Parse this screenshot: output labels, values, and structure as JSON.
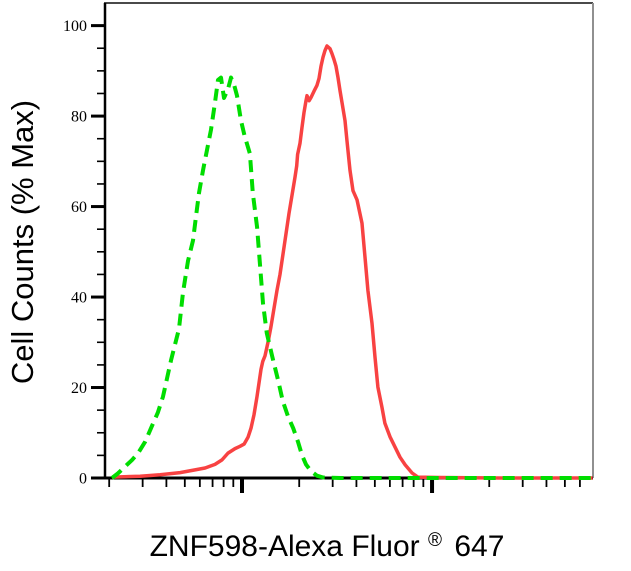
{
  "figure": {
    "background": "#ffffff"
  },
  "chart_data": {
    "type": "line",
    "subtype": "flow-cytometry-histogram-overlay",
    "title": "",
    "ylabel": "Cell Counts (% Max)",
    "xlabel_main": "ZNF598-Alexa Fluor",
    "xlabel_sup": "®",
    "xlabel_tail": "647",
    "x_scale": "log",
    "x_log_range": [
      1.279,
      3.847
    ],
    "x_major_ticks": [
      100,
      1000
    ],
    "x_minor_ticks": [
      20,
      30,
      40,
      50,
      60,
      70,
      80,
      90,
      200,
      300,
      400,
      500,
      600,
      700,
      800,
      900,
      2000,
      3000,
      4000,
      5000,
      6000
    ],
    "y_range": [
      0,
      105
    ],
    "y_major_ticks": [
      0,
      20,
      40,
      60,
      80,
      100
    ],
    "y_minor_step": 5,
    "grid": false,
    "legend": "none",
    "axis_color": "#000000",
    "box_top_color": "#4a4a4a",
    "box_right_color": "#909090",
    "series": [
      {
        "id": "red-solid",
        "color": "#f84242",
        "line_style": "solid",
        "line_width": 3.5,
        "points": [
          [
            20.7,
            0.2
          ],
          [
            29.1,
            0.4
          ],
          [
            37,
            0.7
          ],
          [
            47.2,
            1.2
          ],
          [
            56.6,
            1.8
          ],
          [
            63.9,
            2.2
          ],
          [
            72.1,
            3
          ],
          [
            78.5,
            4
          ],
          [
            84.4,
            5.5
          ],
          [
            91.9,
            6.5
          ],
          [
            97.6,
            7
          ],
          [
            102.5,
            7.5
          ],
          [
            107.5,
            9
          ],
          [
            111.5,
            11
          ],
          [
            115.7,
            14
          ],
          [
            119.9,
            18
          ],
          [
            122.9,
            21
          ],
          [
            125.9,
            24
          ],
          [
            128.7,
            25.8
          ],
          [
            132.1,
            27
          ],
          [
            137,
            30
          ],
          [
            142.1,
            33.5
          ],
          [
            147.4,
            37.5
          ],
          [
            152.8,
            41.5
          ],
          [
            158.5,
            45
          ],
          [
            164.4,
            49.5
          ],
          [
            170.4,
            54
          ],
          [
            176.8,
            58.5
          ],
          [
            183.3,
            62.5
          ],
          [
            190.1,
            66.5
          ],
          [
            194.1,
            69
          ],
          [
            196.1,
            71.5
          ],
          [
            202,
            74
          ],
          [
            206.9,
            77.5
          ],
          [
            212,
            80.8
          ],
          [
            217.2,
            83.4
          ],
          [
            219.8,
            84.5
          ],
          [
            225.5,
            83.4
          ],
          [
            230.8,
            84.1
          ],
          [
            239.1,
            85.5
          ],
          [
            248.2,
            86.8
          ],
          [
            254.3,
            88.3
          ],
          [
            260.5,
            91
          ],
          [
            266.9,
            93
          ],
          [
            273.4,
            94.5
          ],
          [
            280.1,
            95.5
          ],
          [
            290.4,
            94.9
          ],
          [
            297.5,
            93.8
          ],
          [
            305,
            92.5
          ],
          [
            312.3,
            91
          ],
          [
            320,
            88.5
          ],
          [
            328.1,
            85.5
          ],
          [
            336,
            83
          ],
          [
            348.4,
            79
          ],
          [
            356.8,
            74.5
          ],
          [
            370.2,
            68
          ],
          [
            383.6,
            63.5
          ],
          [
            403,
            61.5
          ],
          [
            428.1,
            56.3
          ],
          [
            443.6,
            48.8
          ],
          [
            459.7,
            41.5
          ],
          [
            483.3,
            34.2
          ],
          [
            500.9,
            26.7
          ],
          [
            519.2,
            20.1
          ],
          [
            544.6,
            15.7
          ],
          [
            564.6,
            12.1
          ],
          [
            600.9,
            9.1
          ],
          [
            639.5,
            6.8
          ],
          [
            678.6,
            4.6
          ],
          [
            722.2,
            2.9
          ],
          [
            784.9,
            1.1
          ],
          [
            841.4,
            0.2
          ],
          [
            1100,
            0.1
          ],
          [
            2280,
            0
          ],
          [
            4700,
            0
          ],
          [
            7000,
            0
          ]
        ]
      },
      {
        "id": "green-dashed",
        "color": "#00dd00",
        "line_style": "dashed",
        "dash": [
          12,
          7
        ],
        "line_width": 4,
        "points": [
          [
            20.7,
            0
          ],
          [
            22.2,
            1
          ],
          [
            24.2,
            2.5
          ],
          [
            26.4,
            4
          ],
          [
            28.4,
            5.5
          ],
          [
            30.9,
            8
          ],
          [
            33.2,
            11
          ],
          [
            36.1,
            14.5
          ],
          [
            38.4,
            18
          ],
          [
            40.3,
            22
          ],
          [
            42.3,
            26
          ],
          [
            44.4,
            29.5
          ],
          [
            46.6,
            33
          ],
          [
            48.9,
            41
          ],
          [
            52,
            48
          ],
          [
            55.2,
            52.5
          ],
          [
            57.3,
            58
          ],
          [
            59.4,
            63
          ],
          [
            62.3,
            68
          ],
          [
            65.4,
            72.5
          ],
          [
            68.7,
            77
          ],
          [
            72.1,
            83
          ],
          [
            74.8,
            88
          ],
          [
            77.5,
            88.5
          ],
          [
            80.4,
            84
          ],
          [
            84.4,
            86
          ],
          [
            87.5,
            88.5
          ],
          [
            90.8,
            87
          ],
          [
            94.1,
            84.5
          ],
          [
            98.8,
            79
          ],
          [
            103,
            75.7
          ],
          [
            110,
            71.7
          ],
          [
            114,
            63
          ],
          [
            120,
            55.4
          ],
          [
            124,
            47.7
          ],
          [
            129,
            38.6
          ],
          [
            135,
            32
          ],
          [
            144,
            27
          ],
          [
            155,
            21.5
          ],
          [
            164,
            17
          ],
          [
            175,
            13.5
          ],
          [
            186,
            11
          ],
          [
            197,
            8
          ],
          [
            207,
            5
          ],
          [
            217,
            3
          ],
          [
            231,
            1.5
          ],
          [
            248,
            0.5
          ],
          [
            267,
            0.1
          ],
          [
            330,
            0
          ],
          [
            530,
            0
          ],
          [
            980,
            0
          ],
          [
            1800,
            0
          ],
          [
            3300,
            0
          ],
          [
            7000,
            0
          ]
        ]
      }
    ]
  }
}
